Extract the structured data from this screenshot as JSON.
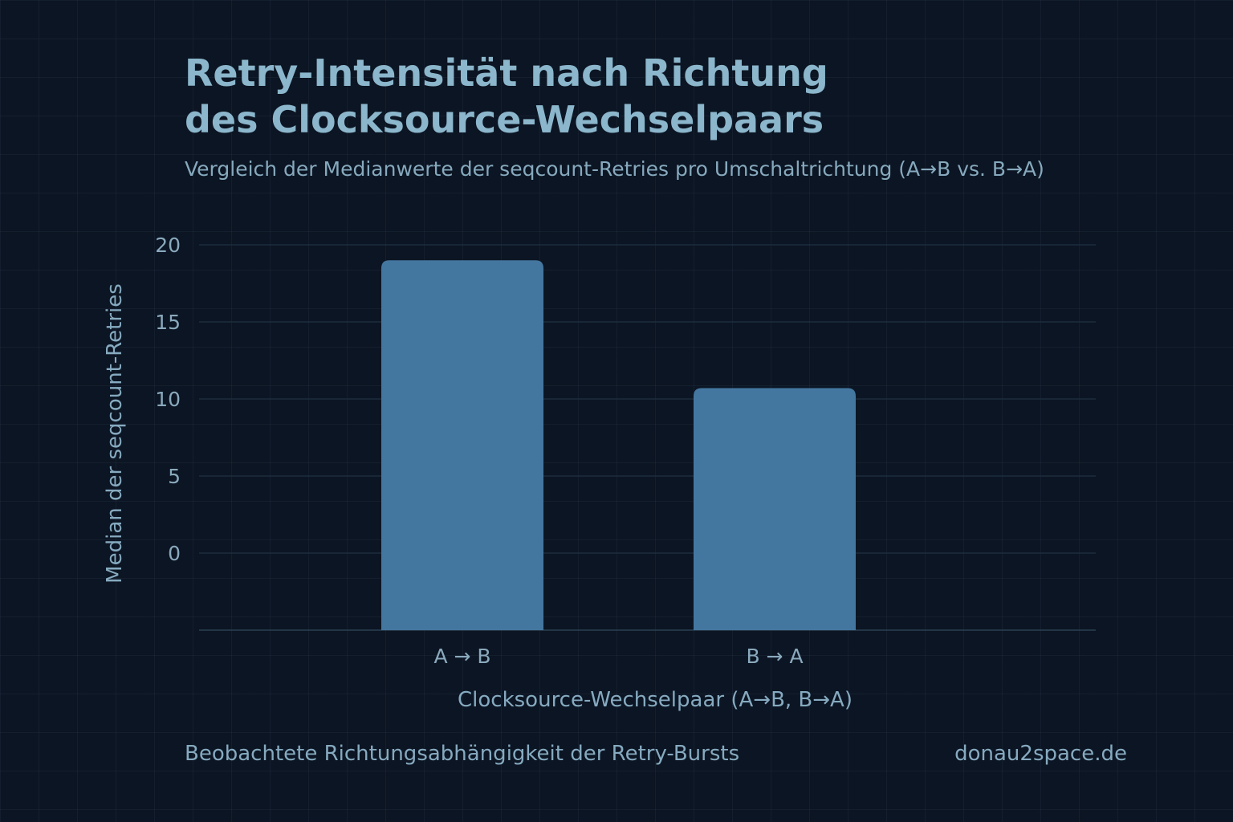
{
  "title_line1": "Retry-Intensität nach Richtung",
  "title_line2": "des Clocksource-Wechselpaars",
  "subtitle": "Vergleich der Medianwerte der seqcount-Retries pro Umschaltrichtung (A→B vs. B→A)",
  "footer_note": "Beobachtete Richtungsabhängigkeit der Retry-Bursts",
  "footer_source": "donau2space.de",
  "colors": {
    "background": "#0c1523",
    "bar": "#4477a0",
    "text": "#8fb3c8"
  },
  "chart_data": {
    "type": "bar",
    "categories": [
      "A → B",
      "B → A"
    ],
    "values": [
      19,
      10.7
    ],
    "xlabel": "Clocksource-Wechselpaar (A→B, B→A)",
    "ylabel": "Median der seqcount-Retries",
    "yticks": [
      0,
      5,
      10,
      15,
      20
    ],
    "ylim": [
      -5,
      20
    ],
    "grid": true,
    "legend": "none"
  }
}
